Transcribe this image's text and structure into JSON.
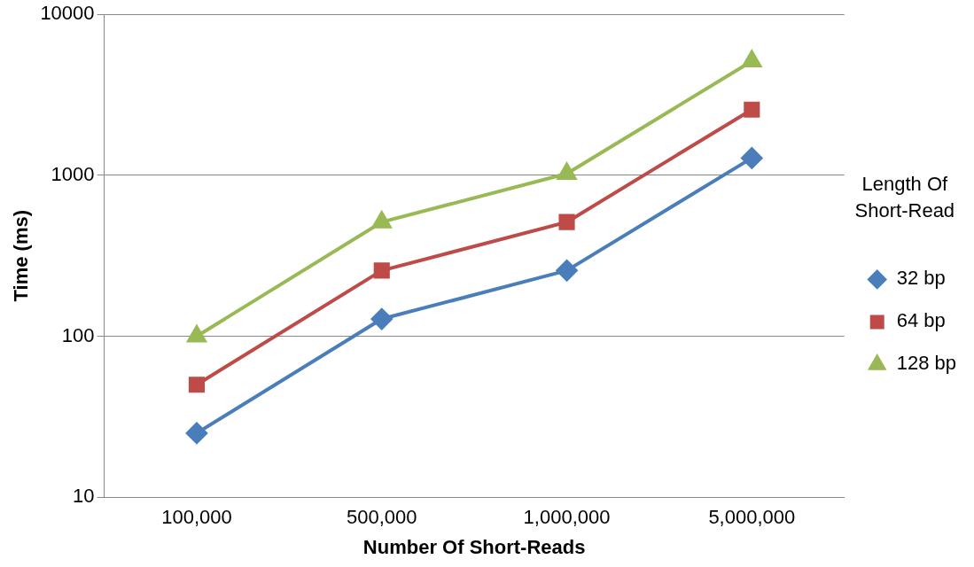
{
  "chart_data": {
    "type": "line",
    "xlabel": "Number Of Short-Reads",
    "ylabel": "Time (ms)",
    "legend_title": "Length Of Short-Read",
    "categories": [
      "100,000",
      "500,000",
      "1,000,000",
      "5,000,000"
    ],
    "series": [
      {
        "name": "32 bp",
        "color": "#4a7ebb",
        "marker": "diamond",
        "values": [
          25,
          128,
          256,
          1280
        ]
      },
      {
        "name": "64 bp",
        "color": "#be4b48",
        "marker": "square",
        "values": [
          50,
          256,
          512,
          2560
        ]
      },
      {
        "name": "128 bp",
        "color": "#98b954",
        "marker": "triangle",
        "values": [
          100,
          512,
          1024,
          5120
        ]
      }
    ],
    "log": "y",
    "ylim": [
      10,
      10000
    ],
    "yticks": [
      10,
      100,
      1000,
      10000
    ],
    "grid": "y",
    "legend": "right",
    "line_style": "solid"
  }
}
